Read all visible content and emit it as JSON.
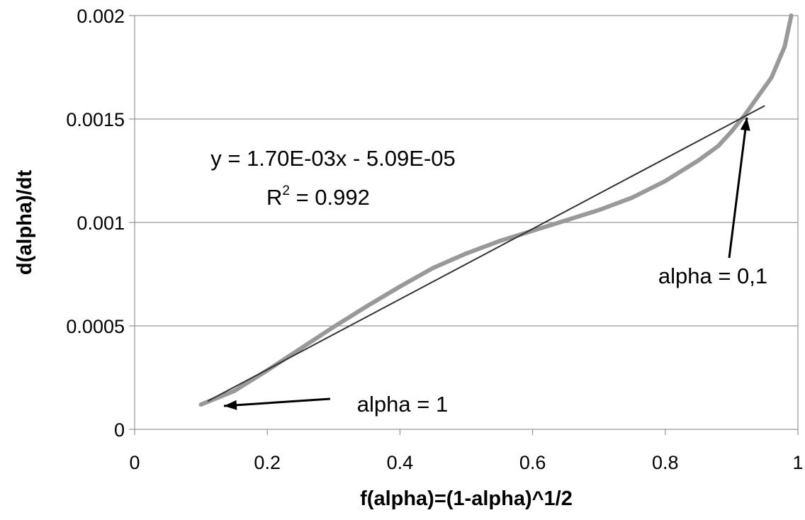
{
  "chart_data": {
    "type": "scatter",
    "xlabel": "f(alpha)=(1-alpha)^1/2",
    "ylabel": "d(alpha)/dt",
    "xlim": [
      0,
      1
    ],
    "ylim": [
      0,
      0.002
    ],
    "x_ticks": [
      "0",
      "0.2",
      "0.4",
      "0.6",
      "0.8",
      "1"
    ],
    "y_ticks": [
      "0",
      "0.0005",
      "0.001",
      "0.0015",
      "0.002"
    ],
    "grid": "horizontal",
    "series": [
      {
        "color": "#999999",
        "x": [
          0.1,
          0.15,
          0.2,
          0.25,
          0.3,
          0.35,
          0.4,
          0.45,
          0.5,
          0.55,
          0.6,
          0.65,
          0.7,
          0.75,
          0.8,
          0.85,
          0.88,
          0.9,
          0.92,
          0.94,
          0.96,
          0.98,
          0.99
        ],
        "y": [
          0.00012,
          0.000185,
          0.000285,
          0.00039,
          0.000495,
          0.000595,
          0.00069,
          0.00078,
          0.00085,
          0.00091,
          0.00096,
          0.00101,
          0.00106,
          0.00112,
          0.0012,
          0.0013,
          0.00137,
          0.00144,
          0.00152,
          0.00161,
          0.0017,
          0.00185,
          0.002
        ]
      },
      {
        "type": "line",
        "color": "#333333",
        "x": [
          0.11,
          0.95
        ],
        "y": [
          0.000136,
          0.001564
        ]
      }
    ],
    "annotations": {
      "equation": "y = 1.70E-03x - 5.09E-05",
      "r2_prefix": "R",
      "r2_superscript": "2",
      "r2_value": " = 0.992",
      "alpha_low": "alpha = 1",
      "alpha_high": "alpha = 0,1"
    }
  }
}
